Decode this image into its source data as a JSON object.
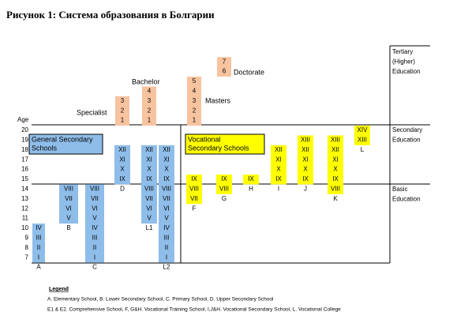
{
  "title": "Рисунок 1: Система образования в Болгарии",
  "age_label": "Age",
  "ages": [
    "20",
    "19",
    "18",
    "17",
    "16",
    "15",
    "14",
    "13",
    "12",
    "11",
    "10",
    "9",
    "8",
    "7"
  ],
  "levels": {
    "tertiary": [
      "Tertiary",
      "(Higher)",
      "Education"
    ],
    "secondary": [
      "Secondary",
      "Education"
    ],
    "basic": [
      "Basic",
      "Education"
    ]
  },
  "boxes": {
    "general": [
      "General Secondary",
      "Schools"
    ],
    "vocational": [
      "Vocational",
      "Secondary Schools"
    ]
  },
  "schools": [
    {
      "label": "A",
      "cells": [
        "IV",
        "III",
        "II",
        "I"
      ]
    },
    {
      "label": "B",
      "cells": [
        "VIII",
        "VII",
        "VI",
        "V"
      ]
    },
    {
      "label": "C",
      "cells": [
        "VIII",
        "VII",
        "VI",
        "V",
        "IV",
        "III",
        "II",
        "I"
      ]
    },
    {
      "label": "D",
      "cells": [
        "XII",
        "XI",
        "X",
        "IX"
      ]
    },
    {
      "label": "L1",
      "cells": [
        "XII",
        "XI",
        "X",
        "IX",
        "VIII",
        "VII",
        "VI",
        "V"
      ]
    },
    {
      "label": "L2",
      "cells": [
        "XII",
        "XI",
        "X",
        "IX",
        "VIII",
        "VII",
        "VI",
        "V",
        "IV",
        "III",
        "II",
        "I"
      ]
    },
    {
      "label": "F",
      "cells": [
        "IX",
        "VIII",
        "VII"
      ]
    },
    {
      "label": "G",
      "cells": [
        "IX",
        "VIII"
      ]
    },
    {
      "label": "H",
      "cells": [
        "IX"
      ]
    },
    {
      "label": "I",
      "cells": [
        "XII",
        "XI",
        "X",
        "IX"
      ]
    },
    {
      "label": "J",
      "cells": [
        "XIII",
        "XII",
        "XI",
        "X",
        "IX"
      ]
    },
    {
      "label": "K",
      "cells": [
        "XIII",
        "XII",
        "XI",
        "X",
        "IX",
        "VIII"
      ]
    },
    {
      "label": "L",
      "cells": [
        "XIV",
        "XIII"
      ]
    }
  ],
  "tertiary": [
    {
      "name": "Specialist",
      "cells": [
        "3",
        "2",
        "1"
      ]
    },
    {
      "name": "Bachelor",
      "cells": [
        "4",
        "3",
        "2",
        "1"
      ]
    },
    {
      "name": "Masters",
      "cells": [
        "5",
        "4",
        "3",
        "2",
        "1"
      ]
    },
    {
      "name": "Doctorate",
      "cells": [
        "7",
        "6"
      ]
    }
  ],
  "legend": {
    "title": "Legend",
    "lines": [
      "A. Elementary School, B. Lower Secondary School, C. Primary School, D. Upper Secondary School",
      "E1 & E2. Comprehensive School, F, G&H. Vocational Training School, I,J&H. Vocational Secondary School, L. Vocational College"
    ]
  }
}
